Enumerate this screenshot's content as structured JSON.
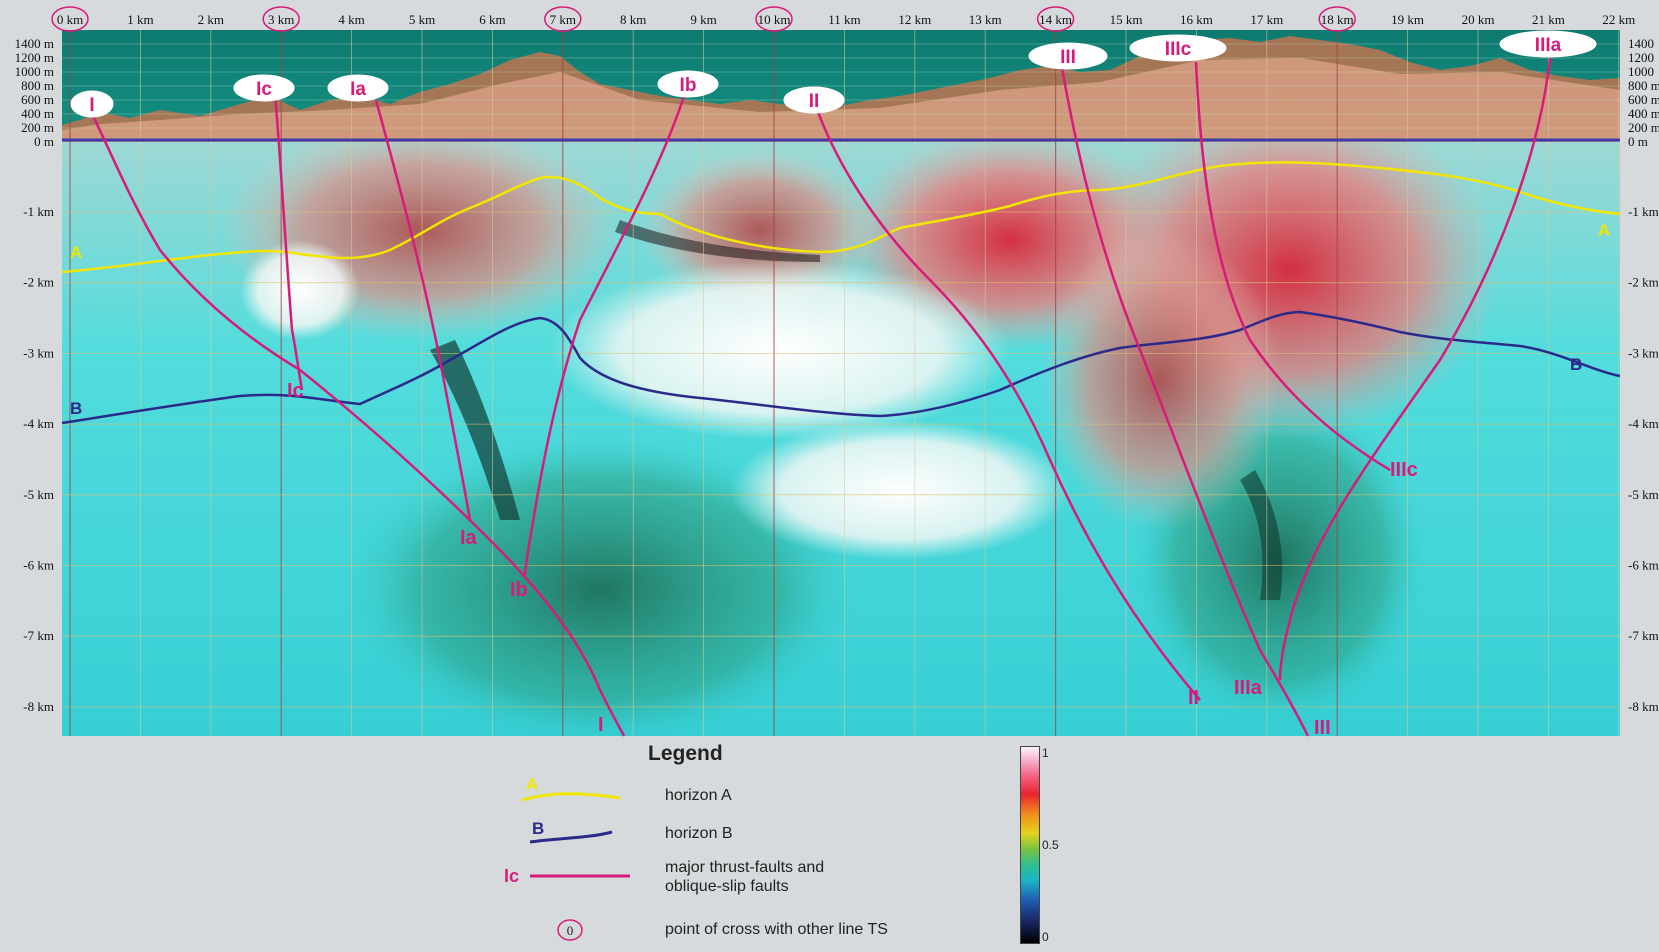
{
  "top_axis": {
    "km_labels": [
      "0 km",
      "1 km",
      "2 km",
      "3 km",
      "4 km",
      "5 km",
      "6 km",
      "7 km",
      "8 km",
      "9 km",
      "10 km",
      "11 km",
      "12 km",
      "13 km",
      "14 km",
      "15 km",
      "16 km",
      "17 km",
      "18 km",
      "19 km",
      "20 km",
      "21 km",
      "22 km"
    ],
    "circled_km": [
      "0 km",
      "3 km",
      "7 km",
      "10 km",
      "14 km",
      "18 km"
    ]
  },
  "elevation_labels": [
    "1400 m",
    "1200 m",
    "1000 m",
    "800 m",
    "600 m",
    "400 m",
    "200 m",
    "0 m"
  ],
  "elevation_labels_right": [
    "1400",
    "1200",
    "1000",
    "800 m",
    "600 m",
    "400 m",
    "200 m",
    "0 m"
  ],
  "depth_labels": [
    "-1 km",
    "-2 km",
    "-3 km",
    "-4 km",
    "-5 km",
    "-6 km",
    "-7 km",
    "-8 km"
  ],
  "faults": [
    {
      "top_label": "I",
      "bottom_label": "I"
    },
    {
      "top_label": "Ic",
      "mid_label": "Ic"
    },
    {
      "top_label": "Ia",
      "bottom_label": "Ia"
    },
    {
      "top_label": "Ib",
      "bottom_label": "Ib"
    },
    {
      "top_label": "II",
      "bottom_label": "II"
    },
    {
      "top_label": "III",
      "bottom_label": "III"
    },
    {
      "top_label": "IIIc",
      "bottom_label": "IIIc"
    },
    {
      "top_label": "IIIa",
      "bottom_label": "IIIa"
    }
  ],
  "horizons": [
    {
      "label": "A",
      "color": "#f2e600"
    },
    {
      "label": "B",
      "color": "#2b2a8a"
    }
  ],
  "legend": {
    "title": "Legend",
    "horizon_a_symbol": "A",
    "horizon_a_text": "horizon A",
    "horizon_b_symbol": "B",
    "horizon_b_text": "horizon B",
    "fault_symbol": "Ic",
    "fault_text_1": "major thrust-faults and",
    "fault_text_2": "oblique-slip faults",
    "cross_symbol": "0",
    "cross_text": "point of cross with other line TS"
  },
  "colorbar": {
    "max": "1",
    "mid": "0.5",
    "min": "0"
  },
  "colors": {
    "fault": "#d81b7a",
    "horizon_a": "#f2e600",
    "horizon_b": "#2b2a8a",
    "sea_level": "#3b3aa8"
  }
}
